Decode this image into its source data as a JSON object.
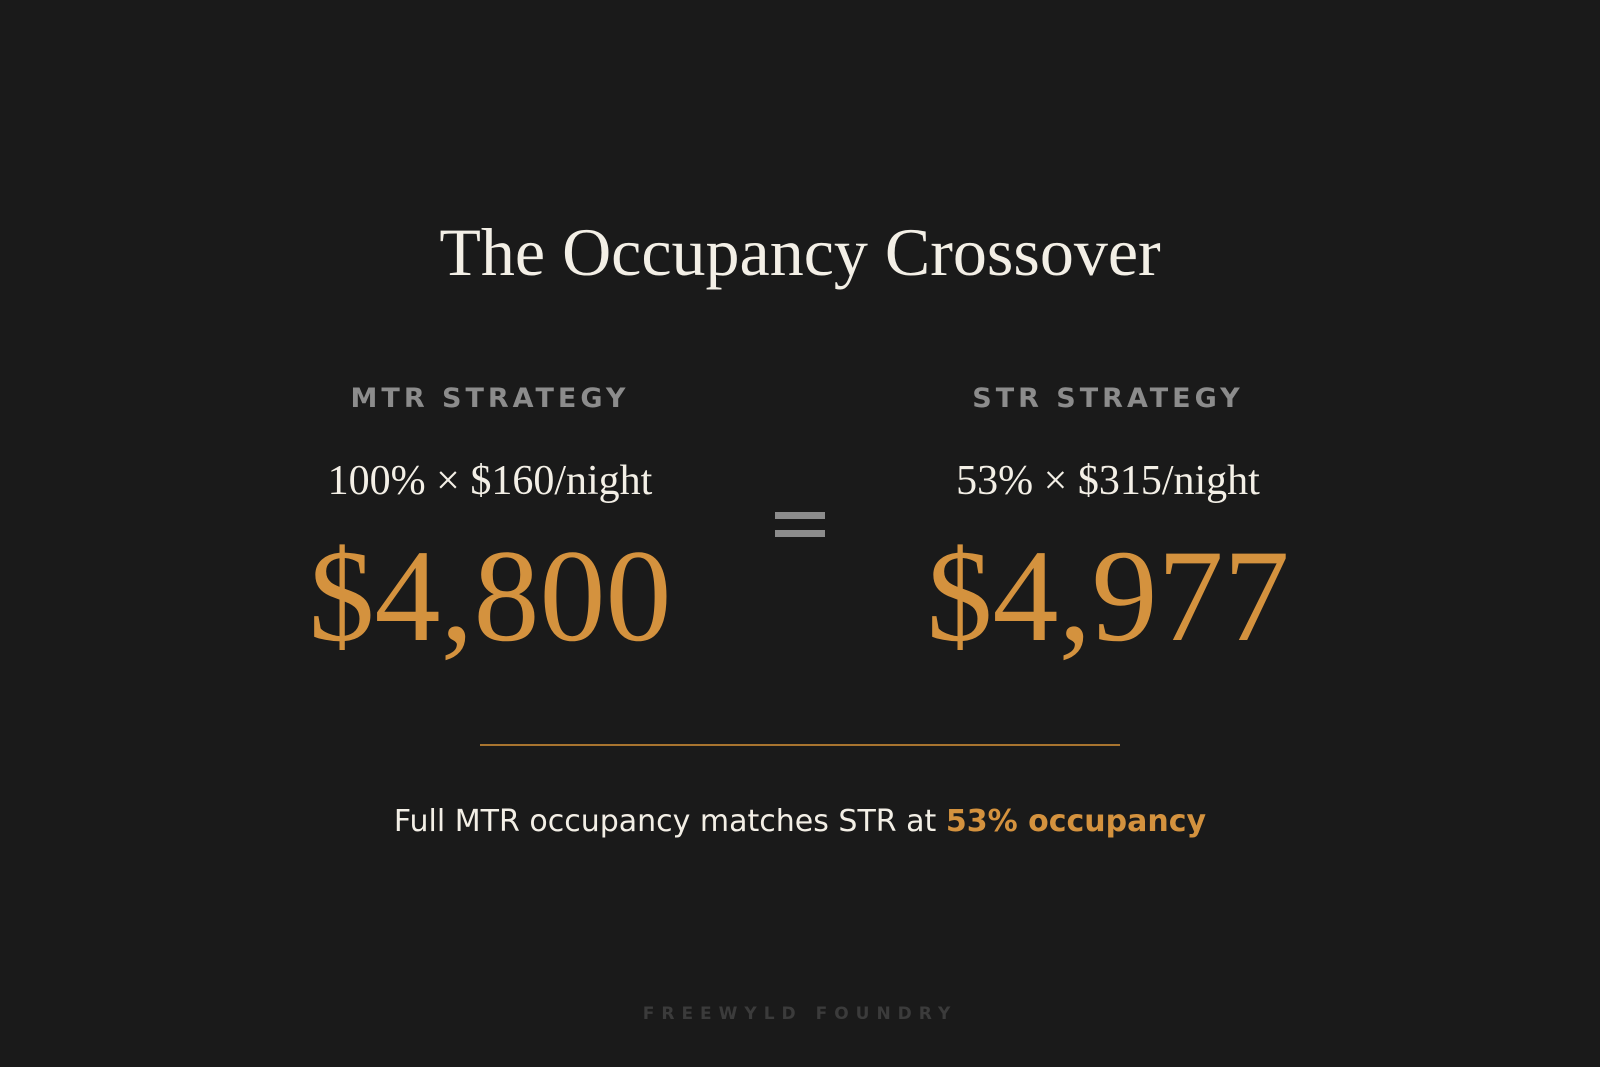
{
  "title": "The Occupancy Crossover",
  "mtr": {
    "label": "MTR STRATEGY",
    "formula": "100% × $160/night",
    "amount": "$4,800"
  },
  "equals_symbol": "=",
  "str": {
    "label": "STR STRATEGY",
    "formula": "53% × $315/night",
    "amount": "$4,977"
  },
  "note": {
    "text": "Full MTR occupancy matches STR at ",
    "highlight": "53% occupancy"
  },
  "brand": "FREEWYLD FOUNDRY",
  "colors": {
    "background": "#1a1a1a",
    "accent": "#d4923e",
    "text": "#f3efe6",
    "muted": "#8c8c8c"
  }
}
